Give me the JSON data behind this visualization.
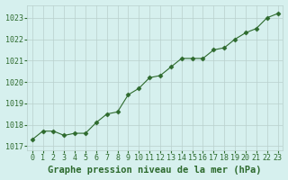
{
  "x": [
    0,
    1,
    2,
    3,
    4,
    5,
    6,
    7,
    8,
    9,
    10,
    11,
    12,
    13,
    14,
    15,
    16,
    17,
    18,
    19,
    20,
    21,
    22,
    23
  ],
  "y": [
    1017.3,
    1017.7,
    1017.7,
    1017.5,
    1017.6,
    1017.6,
    1018.1,
    1018.5,
    1018.6,
    1019.4,
    1019.7,
    1020.2,
    1020.3,
    1020.7,
    1021.1,
    1021.1,
    1021.1,
    1021.5,
    1021.6,
    1022.0,
    1022.3,
    1022.5,
    1023.0,
    1023.2
  ],
  "line_color": "#2d6a2d",
  "marker": "D",
  "marker_size": 2.5,
  "bg_color": "#d6f0ee",
  "grid_color": "#b8d0cc",
  "xlabel": "Graphe pression niveau de la mer (hPa)",
  "ylim": [
    1016.8,
    1023.6
  ],
  "xlim": [
    -0.5,
    23.5
  ],
  "yticks": [
    1017,
    1018,
    1019,
    1020,
    1021,
    1022,
    1023
  ],
  "xticks": [
    0,
    1,
    2,
    3,
    4,
    5,
    6,
    7,
    8,
    9,
    10,
    11,
    12,
    13,
    14,
    15,
    16,
    17,
    18,
    19,
    20,
    21,
    22,
    23
  ],
  "tick_color": "#2d6a2d",
  "xlabel_color": "#2d6a2d",
  "xlabel_fontsize": 7.5,
  "tick_fontsize": 6.0
}
